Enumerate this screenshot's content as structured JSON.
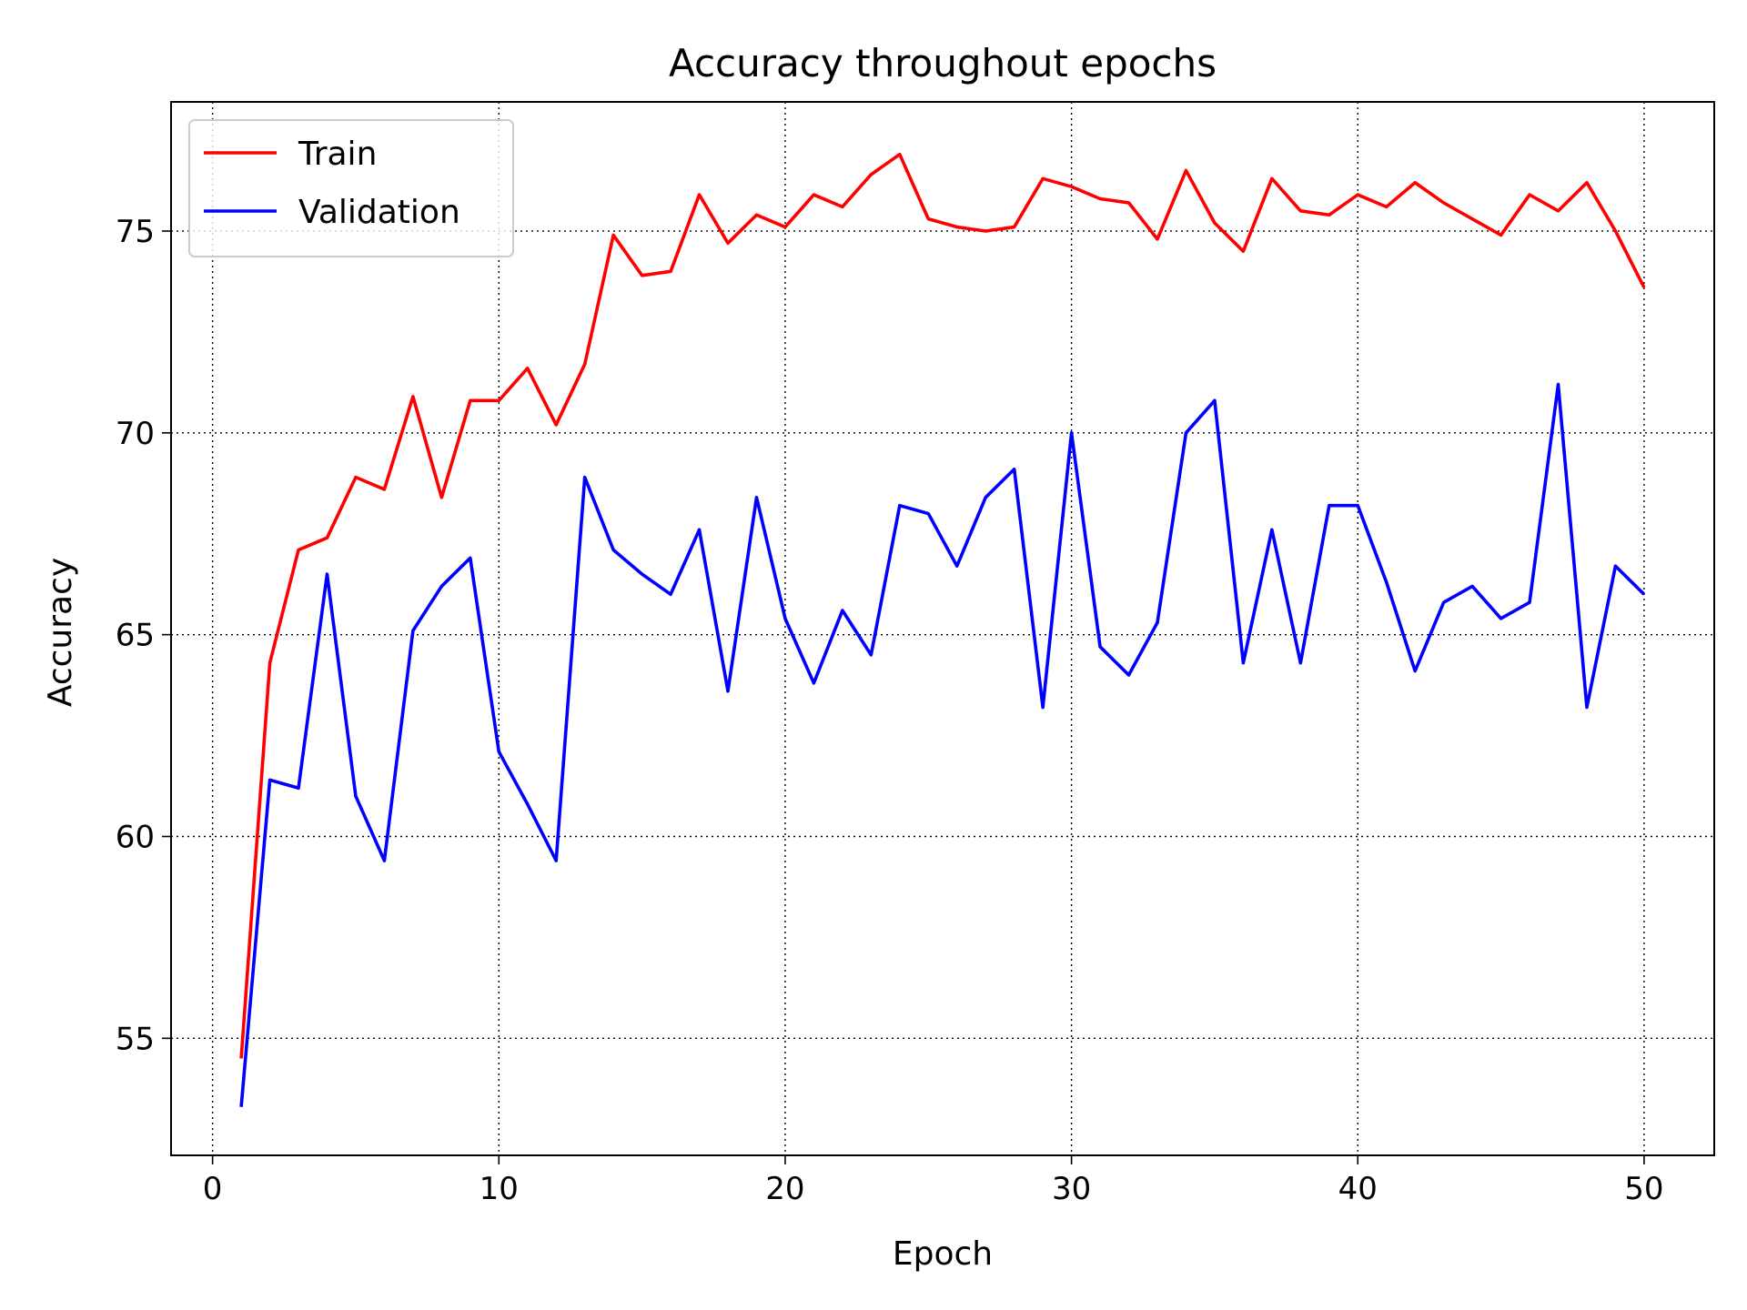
{
  "chart_data": {
    "type": "line",
    "title": "Accuracy throughout epochs",
    "xlabel": "Epoch",
    "ylabel": "Accuracy",
    "xlim": [
      -1.45,
      52.45
    ],
    "ylim": [
      52.1,
      78.2
    ],
    "xticks": [
      0,
      10,
      20,
      30,
      40,
      50
    ],
    "yticks": [
      55,
      60,
      65,
      70,
      75
    ],
    "grid": true,
    "legend_position": "upper-left",
    "x": [
      1,
      2,
      3,
      4,
      5,
      6,
      7,
      8,
      9,
      10,
      11,
      12,
      13,
      14,
      15,
      16,
      17,
      18,
      19,
      20,
      21,
      22,
      23,
      24,
      25,
      26,
      27,
      28,
      29,
      30,
      31,
      32,
      33,
      34,
      35,
      36,
      37,
      38,
      39,
      40,
      41,
      42,
      43,
      44,
      45,
      46,
      47,
      48,
      49,
      50
    ],
    "series": [
      {
        "name": "Train",
        "color": "#ff0000",
        "values": [
          54.5,
          64.3,
          67.1,
          67.4,
          68.9,
          68.6,
          70.9,
          68.4,
          70.8,
          70.8,
          71.6,
          70.2,
          71.7,
          74.9,
          73.9,
          74.0,
          75.9,
          74.7,
          75.4,
          75.1,
          75.9,
          75.6,
          76.4,
          76.9,
          75.3,
          75.1,
          75.0,
          75.1,
          76.3,
          76.1,
          75.8,
          75.7,
          74.8,
          76.5,
          75.2,
          74.5,
          76.3,
          75.5,
          75.4,
          75.9,
          75.6,
          76.2,
          75.7,
          75.3,
          74.9,
          75.9,
          75.5,
          76.2,
          75.0,
          73.6
        ]
      },
      {
        "name": "Validation",
        "color": "#0000ff",
        "values": [
          53.3,
          61.4,
          61.2,
          66.5,
          61.0,
          59.4,
          65.1,
          66.2,
          66.9,
          62.1,
          60.8,
          59.4,
          68.9,
          67.1,
          66.5,
          66.0,
          67.6,
          63.6,
          68.4,
          65.4,
          63.8,
          65.6,
          64.5,
          68.2,
          68.0,
          66.7,
          68.4,
          69.1,
          63.2,
          70.0,
          64.7,
          64.0,
          65.3,
          70.0,
          70.8,
          64.3,
          67.6,
          64.3,
          68.2,
          68.2,
          66.3,
          64.1,
          65.8,
          66.2,
          65.4,
          65.8,
          71.2,
          63.2,
          66.7,
          66.0
        ]
      }
    ]
  }
}
